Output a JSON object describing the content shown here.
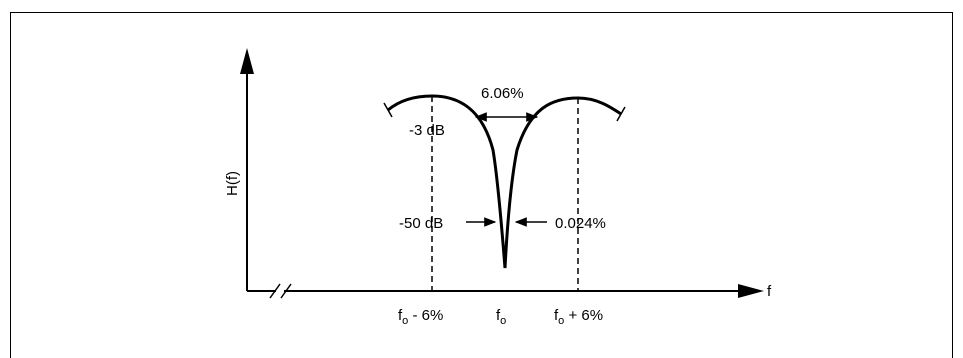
{
  "diagram": {
    "y_axis_label": "H(f)",
    "x_axis_label": "f",
    "notch_width_label": "6.06%",
    "minus3db_label": "-3 dB",
    "minus50db_label": "-50 dB",
    "narrow_width_label": "0.024%",
    "ticks": {
      "left": {
        "main": "f",
        "sub": "o",
        "suffix": " - 6%"
      },
      "center": {
        "main": "f",
        "sub": "o",
        "suffix": ""
      },
      "right": {
        "main": "f",
        "sub": "o",
        "suffix": " + 6%"
      }
    }
  }
}
